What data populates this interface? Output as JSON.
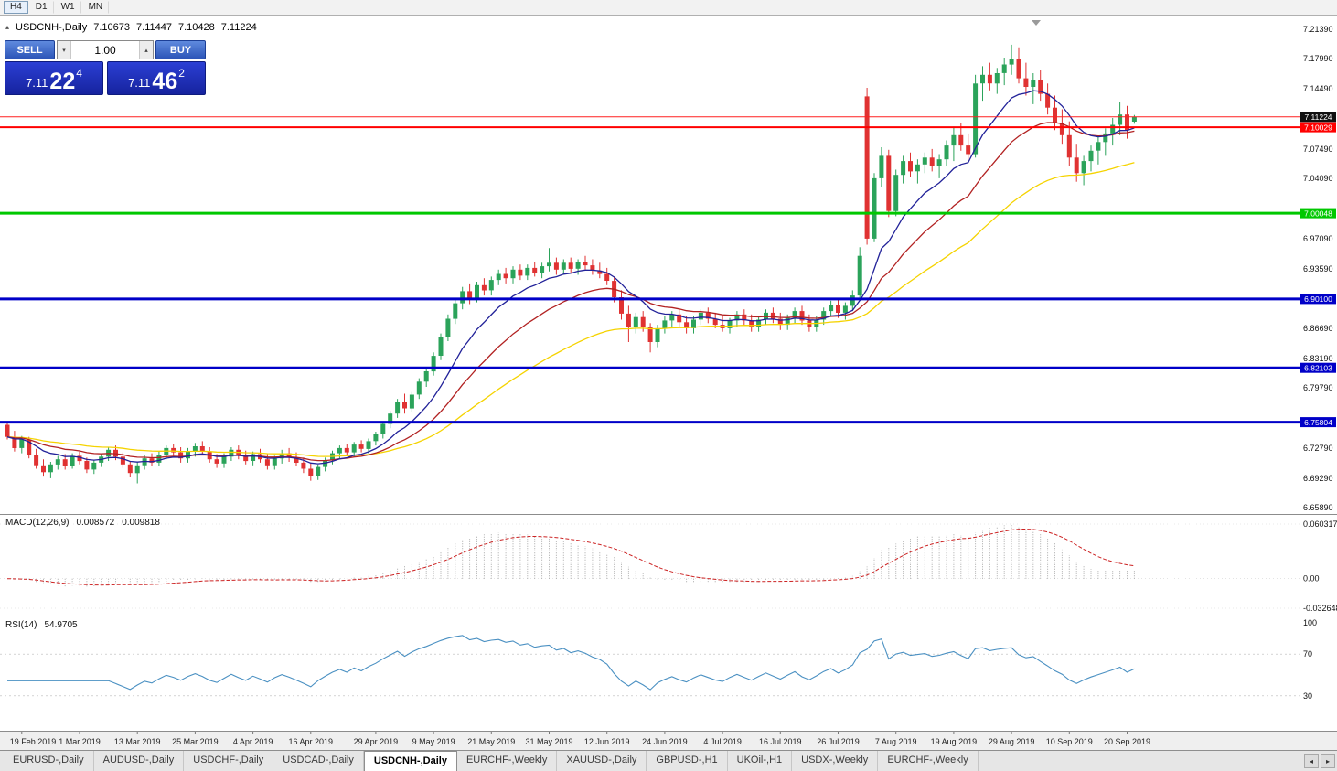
{
  "toolbar": {
    "timeframes": [
      "H4",
      "D1",
      "W1",
      "MN"
    ],
    "active": "H4"
  },
  "chart_header": {
    "symbol": "USDCNH-,Daily",
    "open": "7.10673",
    "high": "7.11447",
    "low": "7.10428",
    "close": "7.11224"
  },
  "trade_panel": {
    "sell_label": "SELL",
    "buy_label": "BUY",
    "volume": "1.00",
    "bid": {
      "prefix": "7.11",
      "big": "22",
      "sup": "4"
    },
    "ask": {
      "prefix": "7.11",
      "big": "46",
      "sup": "2"
    }
  },
  "indicators": {
    "macd": {
      "label": "MACD(12,26,9)",
      "value_main": "0.008572",
      "value_signal": "0.009818",
      "axis": [
        "0.060317",
        "0.00",
        "-0.032648"
      ],
      "params": {
        "fast": 12,
        "slow": 26,
        "signal": 9
      }
    },
    "rsi": {
      "label": "RSI(14)",
      "value": "54.9705",
      "axis": [
        "100",
        "70",
        "30"
      ],
      "period": 14,
      "levels": [
        70,
        30
      ]
    }
  },
  "price_axis": {
    "ticks": [
      "7.21390",
      "7.17990",
      "7.14490",
      "7.07490",
      "7.04090",
      "6.97090",
      "6.93590",
      "6.86690",
      "6.83190",
      "6.79790",
      "6.72790",
      "6.69290",
      "6.65890"
    ]
  },
  "current_price": {
    "value": 7.11224,
    "label": "7.11224",
    "line_color": "#ff2020",
    "badge_color": "#101010"
  },
  "hlines": [
    {
      "value": 7.10029,
      "label": "7.10029",
      "color": "#ff0000",
      "width": 2
    },
    {
      "value": 7.00048,
      "label": "7.00048",
      "color": "#00c800",
      "width": 3
    },
    {
      "value": 6.901,
      "label": "6.90100",
      "color": "#0000c8",
      "width": 3
    },
    {
      "value": 6.82103,
      "label": "6.82103",
      "color": "#0000c8",
      "width": 3
    },
    {
      "value": 6.75804,
      "label": "6.75804",
      "color": "#0000c8",
      "width": 3
    }
  ],
  "tabs": {
    "items": [
      "EURUSD-,Daily",
      "AUDUSD-,Daily",
      "USDCHF-,Daily",
      "USDCAD-,Daily",
      "USDCNH-,Daily",
      "EURCHF-,Weekly",
      "XAUUSD-,Daily",
      "GBPUSD-,H1",
      "UKOil-,H1",
      "USDX-,Weekly",
      "EURCHF-,Weekly"
    ],
    "active_index": 4,
    "scroll_left": "◂",
    "scroll_right": "▸"
  },
  "chart_data": {
    "type": "candlestick",
    "symbol": "USDCNH",
    "timeframe": "Daily",
    "ylim": [
      6.6515,
      7.2298
    ],
    "x0": 8,
    "dx": 7.9,
    "colors": {
      "up": "#2ba35a",
      "down": "#e03232",
      "ma_fast": "#222299",
      "ma_mid": "#b22222",
      "ma_slow": "#f5d300",
      "macd_hist": "#a8a8a8",
      "macd_signal": "#cc2222",
      "rsi": "#4a90c2"
    },
    "ma_periods": {
      "fast": 10,
      "mid": 21,
      "slow": 45
    },
    "x_ticks": [
      {
        "i": 2,
        "label": "19 Feb 2019"
      },
      {
        "i": 10,
        "label": "1 Mar 2019"
      },
      {
        "i": 18,
        "label": "13 Mar 2019"
      },
      {
        "i": 26,
        "label": "25 Mar 2019"
      },
      {
        "i": 34,
        "label": "4 Apr 2019"
      },
      {
        "i": 42,
        "label": "16 Apr 2019"
      },
      {
        "i": 51,
        "label": "29 Apr 2019"
      },
      {
        "i": 59,
        "label": "9 May 2019"
      },
      {
        "i": 67,
        "label": "21 May 2019"
      },
      {
        "i": 75,
        "label": "31 May 2019"
      },
      {
        "i": 83,
        "label": "12 Jun 2019"
      },
      {
        "i": 91,
        "label": "24 Jun 2019"
      },
      {
        "i": 99,
        "label": "4 Jul 2019"
      },
      {
        "i": 107,
        "label": "16 Jul 2019"
      },
      {
        "i": 115,
        "label": "26 Jul 2019"
      },
      {
        "i": 123,
        "label": "7 Aug 2019"
      },
      {
        "i": 131,
        "label": "19 Aug 2019"
      },
      {
        "i": 139,
        "label": "29 Aug 2019"
      },
      {
        "i": 147,
        "label": "10 Sep 2019"
      },
      {
        "i": 155,
        "label": "20 Sep 2019"
      }
    ],
    "candles": [
      [
        6.755,
        6.758,
        6.738,
        6.741
      ],
      [
        6.741,
        6.748,
        6.724,
        6.728
      ],
      [
        6.728,
        6.742,
        6.722,
        6.738
      ],
      [
        6.738,
        6.741,
        6.716,
        6.72
      ],
      [
        6.72,
        6.727,
        6.704,
        6.708
      ],
      [
        6.708,
        6.715,
        6.696,
        6.7
      ],
      [
        6.7,
        6.712,
        6.693,
        6.709
      ],
      [
        6.709,
        6.719,
        6.703,
        6.715
      ],
      [
        6.715,
        6.721,
        6.703,
        6.707
      ],
      [
        6.707,
        6.722,
        6.704,
        6.719
      ],
      [
        6.719,
        6.724,
        6.709,
        6.713
      ],
      [
        6.713,
        6.717,
        6.699,
        6.703
      ],
      [
        6.703,
        6.714,
        6.698,
        6.711
      ],
      [
        6.711,
        6.721,
        6.706,
        6.718
      ],
      [
        6.718,
        6.729,
        6.713,
        6.726
      ],
      [
        6.726,
        6.731,
        6.714,
        6.718
      ],
      [
        6.718,
        6.723,
        6.705,
        6.709
      ],
      [
        6.709,
        6.713,
        6.695,
        6.699
      ],
      [
        6.699,
        6.712,
        6.687,
        6.708
      ],
      [
        6.708,
        6.72,
        6.703,
        6.716
      ],
      [
        6.716,
        6.722,
        6.707,
        6.711
      ],
      [
        6.711,
        6.724,
        6.707,
        6.72
      ],
      [
        6.72,
        6.731,
        6.715,
        6.728
      ],
      [
        6.728,
        6.733,
        6.719,
        6.723
      ],
      [
        6.723,
        6.729,
        6.711,
        6.716
      ],
      [
        6.716,
        6.728,
        6.711,
        6.724
      ],
      [
        6.724,
        6.734,
        6.718,
        6.73
      ],
      [
        6.73,
        6.736,
        6.72,
        6.724
      ],
      [
        6.724,
        6.729,
        6.711,
        6.715
      ],
      [
        6.715,
        6.721,
        6.705,
        6.71
      ],
      [
        6.71,
        6.722,
        6.705,
        6.718
      ],
      [
        6.718,
        6.729,
        6.713,
        6.726
      ],
      [
        6.726,
        6.731,
        6.715,
        6.719
      ],
      [
        6.719,
        6.725,
        6.709,
        6.713
      ],
      [
        6.713,
        6.724,
        6.708,
        6.721
      ],
      [
        6.721,
        6.727,
        6.711,
        6.715
      ],
      [
        6.715,
        6.721,
        6.703,
        6.708
      ],
      [
        6.708,
        6.719,
        6.703,
        6.716
      ],
      [
        6.716,
        6.726,
        6.71,
        6.722
      ],
      [
        6.722,
        6.728,
        6.712,
        6.717
      ],
      [
        6.717,
        6.723,
        6.707,
        6.711
      ],
      [
        6.711,
        6.717,
        6.699,
        6.704
      ],
      [
        6.704,
        6.711,
        6.69,
        6.696
      ],
      [
        6.696,
        6.709,
        6.691,
        6.706
      ],
      [
        6.706,
        6.717,
        6.701,
        6.714
      ],
      [
        6.714,
        6.725,
        6.709,
        6.722
      ],
      [
        6.722,
        6.731,
        6.715,
        6.728
      ],
      [
        6.728,
        6.733,
        6.719,
        6.723
      ],
      [
        6.723,
        6.735,
        6.718,
        6.732
      ],
      [
        6.732,
        6.737,
        6.723,
        6.727
      ],
      [
        6.727,
        6.739,
        6.722,
        6.736
      ],
      [
        6.736,
        6.747,
        6.731,
        6.744
      ],
      [
        6.744,
        6.759,
        6.739,
        6.756
      ],
      [
        6.756,
        6.771,
        6.751,
        6.768
      ],
      [
        6.768,
        6.785,
        6.763,
        6.782
      ],
      [
        6.782,
        6.791,
        6.768,
        6.774
      ],
      [
        6.774,
        6.793,
        6.77,
        6.79
      ],
      [
        6.79,
        6.809,
        6.785,
        6.805
      ],
      [
        6.805,
        6.821,
        6.799,
        6.817
      ],
      [
        6.817,
        6.839,
        6.812,
        6.835
      ],
      [
        6.835,
        6.861,
        6.83,
        6.857
      ],
      [
        6.857,
        6.883,
        6.852,
        6.878
      ],
      [
        6.878,
        6.901,
        6.872,
        6.896
      ],
      [
        6.896,
        6.915,
        6.889,
        6.91
      ],
      [
        6.91,
        6.919,
        6.895,
        6.902
      ],
      [
        6.902,
        6.921,
        6.897,
        6.917
      ],
      [
        6.917,
        6.925,
        6.905,
        6.911
      ],
      [
        6.911,
        6.927,
        6.905,
        6.923
      ],
      [
        6.923,
        6.935,
        6.917,
        6.93
      ],
      [
        6.93,
        6.937,
        6.919,
        6.925
      ],
      [
        6.925,
        6.939,
        6.919,
        6.935
      ],
      [
        6.935,
        6.941,
        6.923,
        6.928
      ],
      [
        6.928,
        6.941,
        6.923,
        6.937
      ],
      [
        6.937,
        6.944,
        6.927,
        6.931
      ],
      [
        6.931,
        6.943,
        6.925,
        6.939
      ],
      [
        6.939,
        6.96,
        6.933,
        6.943
      ],
      [
        6.943,
        6.949,
        6.929,
        6.935
      ],
      [
        6.935,
        6.947,
        6.929,
        6.943
      ],
      [
        6.943,
        6.949,
        6.931,
        6.936
      ],
      [
        6.936,
        6.947,
        6.929,
        6.944
      ],
      [
        6.944,
        6.951,
        6.935,
        6.94
      ],
      [
        6.94,
        6.947,
        6.929,
        6.934
      ],
      [
        6.934,
        6.943,
        6.925,
        6.93
      ],
      [
        6.93,
        6.937,
        6.917,
        6.922
      ],
      [
        6.922,
        6.927,
        6.897,
        6.903
      ],
      [
        6.903,
        6.911,
        6.877,
        6.884
      ],
      [
        6.884,
        6.893,
        6.851,
        6.869
      ],
      [
        6.869,
        6.885,
        6.861,
        6.88
      ],
      [
        6.88,
        6.887,
        6.863,
        6.868
      ],
      [
        6.868,
        6.873,
        6.839,
        6.851
      ],
      [
        6.851,
        6.871,
        6.845,
        6.867
      ],
      [
        6.867,
        6.881,
        6.861,
        6.876
      ],
      [
        6.876,
        6.887,
        6.869,
        6.883
      ],
      [
        6.883,
        6.889,
        6.869,
        6.874
      ],
      [
        6.874,
        6.881,
        6.861,
        6.867
      ],
      [
        6.867,
        6.881,
        6.861,
        6.877
      ],
      [
        6.877,
        6.889,
        6.871,
        6.885
      ],
      [
        6.885,
        6.891,
        6.873,
        6.878
      ],
      [
        6.878,
        6.885,
        6.867,
        6.871
      ],
      [
        6.871,
        6.881,
        6.863,
        6.867
      ],
      [
        6.867,
        6.879,
        6.861,
        6.876
      ],
      [
        6.876,
        6.887,
        6.869,
        6.883
      ],
      [
        6.883,
        6.889,
        6.871,
        6.876
      ],
      [
        6.876,
        6.883,
        6.863,
        6.869
      ],
      [
        6.869,
        6.881,
        6.863,
        6.877
      ],
      [
        6.877,
        6.889,
        6.871,
        6.885
      ],
      [
        6.885,
        6.891,
        6.873,
        6.878
      ],
      [
        6.878,
        6.885,
        6.865,
        6.871
      ],
      [
        6.871,
        6.883,
        6.865,
        6.879
      ],
      [
        6.879,
        6.891,
        6.873,
        6.887
      ],
      [
        6.887,
        6.893,
        6.871,
        6.876
      ],
      [
        6.876,
        6.883,
        6.863,
        6.869
      ],
      [
        6.869,
        6.881,
        6.863,
        6.877
      ],
      [
        6.877,
        6.891,
        6.871,
        6.887
      ],
      [
        6.887,
        6.899,
        6.881,
        6.894
      ],
      [
        6.894,
        6.901,
        6.879,
        6.885
      ],
      [
        6.885,
        6.897,
        6.877,
        6.893
      ],
      [
        6.893,
        6.911,
        6.887,
        6.905
      ],
      [
        6.905,
        6.961,
        6.899,
        6.951
      ],
      [
        7.136,
        7.146,
        6.964,
        6.971
      ],
      [
        6.971,
        7.047,
        6.967,
        7.041
      ],
      [
        7.041,
        7.077,
        7.031,
        7.067
      ],
      [
        7.067,
        7.074,
        6.996,
        7.003
      ],
      [
        7.003,
        7.051,
        6.997,
        7.045
      ],
      [
        7.045,
        7.067,
        7.035,
        7.061
      ],
      [
        7.061,
        7.071,
        7.043,
        7.049
      ],
      [
        7.049,
        7.063,
        7.035,
        7.057
      ],
      [
        7.057,
        7.071,
        7.047,
        7.065
      ],
      [
        7.065,
        7.075,
        7.049,
        7.055
      ],
      [
        7.055,
        7.069,
        7.041,
        7.063
      ],
      [
        7.063,
        7.085,
        7.055,
        7.079
      ],
      [
        7.079,
        7.101,
        7.061,
        7.091
      ],
      [
        7.091,
        7.105,
        7.073,
        7.079
      ],
      [
        7.079,
        7.093,
        7.063,
        7.069
      ],
      [
        7.069,
        7.161,
        7.065,
        7.151
      ],
      [
        7.151,
        7.171,
        7.131,
        7.161
      ],
      [
        7.161,
        7.175,
        7.143,
        7.151
      ],
      [
        7.151,
        7.169,
        7.139,
        7.163
      ],
      [
        7.163,
        7.181,
        7.149,
        7.173
      ],
      [
        7.173,
        7.196,
        7.161,
        7.179
      ],
      [
        7.179,
        7.193,
        7.151,
        7.157
      ],
      [
        7.157,
        7.175,
        7.137,
        7.147
      ],
      [
        7.147,
        7.163,
        7.127,
        7.155
      ],
      [
        7.155,
        7.167,
        7.131,
        7.139
      ],
      [
        7.139,
        7.151,
        7.115,
        7.123
      ],
      [
        7.123,
        7.137,
        7.097,
        7.105
      ],
      [
        7.105,
        7.121,
        7.081,
        7.091
      ],
      [
        7.091,
        7.107,
        7.055,
        7.065
      ],
      [
        7.065,
        7.081,
        7.037,
        7.047
      ],
      [
        7.047,
        7.067,
        7.033,
        7.061
      ],
      [
        7.061,
        7.079,
        7.049,
        7.073
      ],
      [
        7.073,
        7.089,
        7.057,
        7.083
      ],
      [
        7.083,
        7.099,
        7.067,
        7.093
      ],
      [
        7.093,
        7.111,
        7.079,
        7.103
      ],
      [
        7.103,
        7.129,
        7.091,
        7.115
      ],
      [
        7.115,
        7.125,
        7.087,
        7.097
      ],
      [
        7.10673,
        7.11447,
        7.10428,
        7.11224
      ]
    ]
  }
}
